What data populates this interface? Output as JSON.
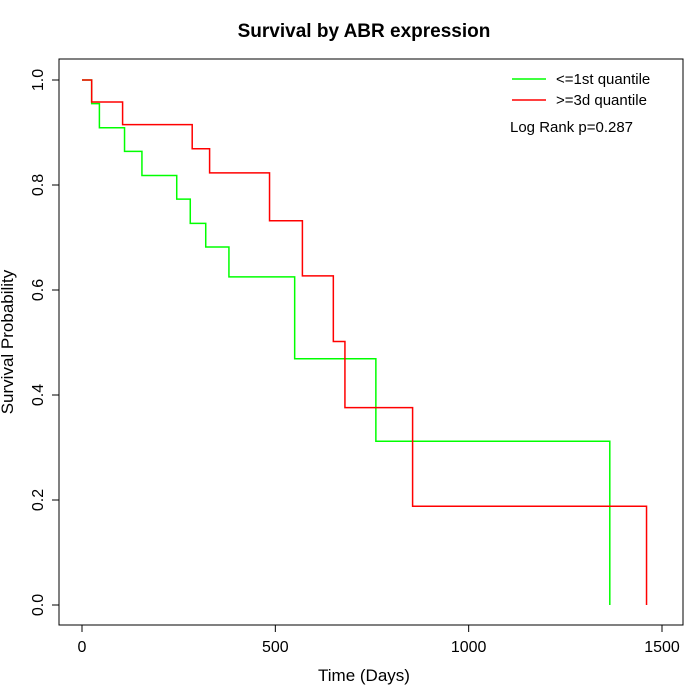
{
  "chart_data": {
    "type": "line",
    "title": "Survival by ABR expression",
    "xlabel": "Time (Days)",
    "ylabel": "Survival Probability",
    "xlim": [
      0,
      1500
    ],
    "ylim": [
      0,
      1.0
    ],
    "x_ticks": [
      0,
      500,
      1000,
      1500
    ],
    "y_ticks": [
      0.0,
      0.2,
      0.4,
      0.6,
      0.8,
      1.0
    ],
    "x_tick_labels": [
      "0",
      "500",
      "1000",
      "1500"
    ],
    "y_tick_labels": [
      "0.0",
      "0.2",
      "0.4",
      "0.6",
      "0.8",
      "1.0"
    ],
    "grid": false,
    "legend_position": "top-right",
    "annotation": "Log Rank p=0.287",
    "series": [
      {
        "name": "<=1st quantile",
        "color": "#00ff00",
        "step": true,
        "x": [
          0,
          25,
          45,
          110,
          155,
          245,
          280,
          320,
          380,
          550,
          760,
          1365,
          1365
        ],
        "y": [
          1.0,
          0.955,
          0.909,
          0.864,
          0.818,
          0.773,
          0.727,
          0.682,
          0.625,
          0.469,
          0.312,
          0.312,
          0.0
        ]
      },
      {
        "name": ">=3d quantile",
        "color": "#ff0000",
        "step": true,
        "x": [
          0,
          25,
          105,
          285,
          330,
          485,
          570,
          650,
          680,
          855,
          1460,
          1460
        ],
        "y": [
          1.0,
          0.958,
          0.915,
          0.869,
          0.823,
          0.732,
          0.627,
          0.502,
          0.376,
          0.188,
          0.188,
          0.0
        ]
      }
    ]
  }
}
